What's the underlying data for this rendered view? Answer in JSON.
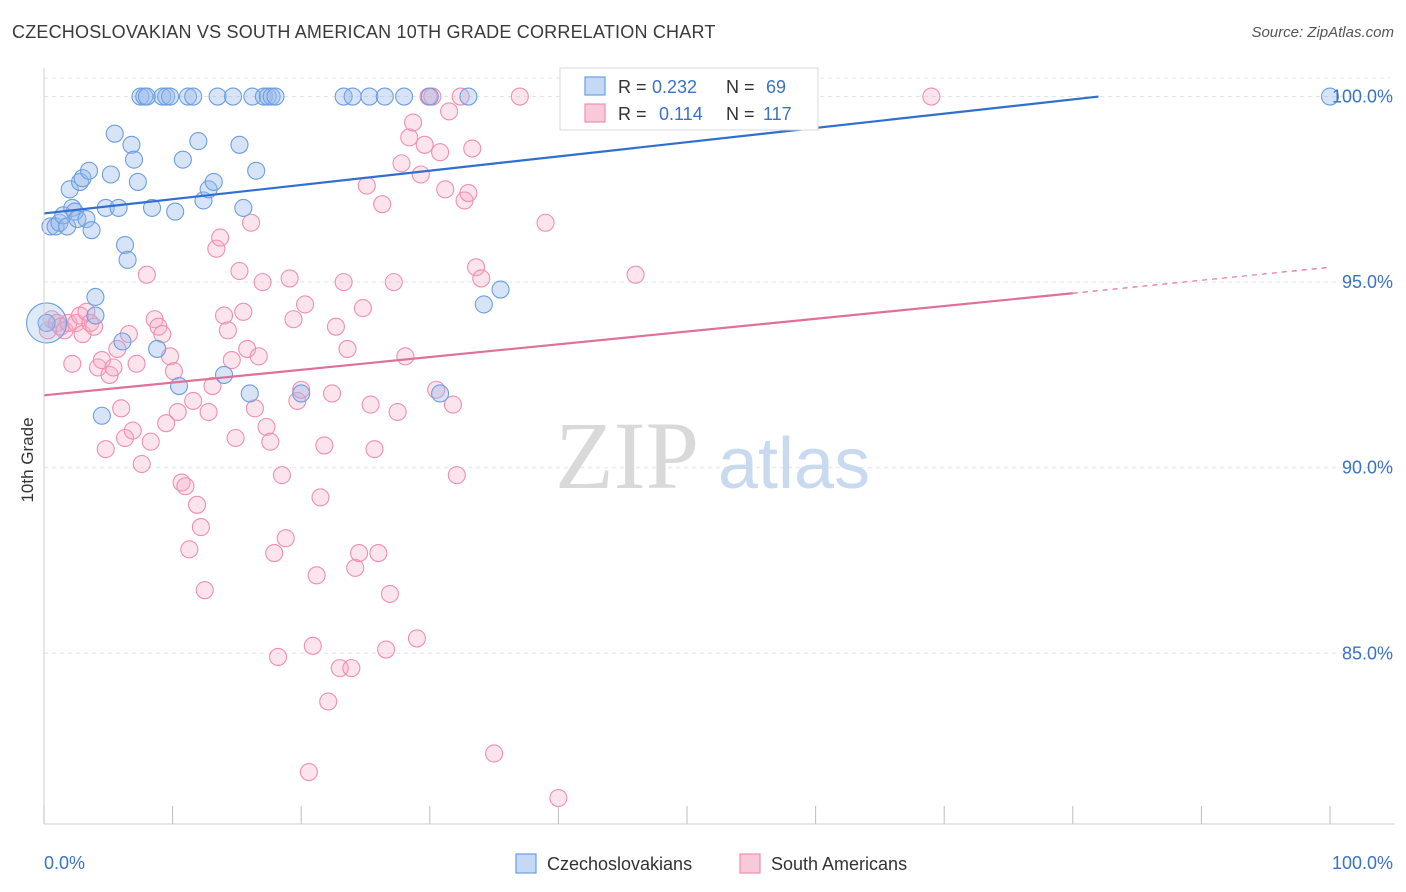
{
  "title": "CZECHOSLOVAKIAN VS SOUTH AMERICAN 10TH GRADE CORRELATION CHART",
  "source": "Source: ZipAtlas.com",
  "watermark": {
    "zip": "ZIP",
    "atlas": "atlas"
  },
  "legend_box": [
    {
      "r_label": "R =",
      "r_value": "0.232",
      "n_label": "N =",
      "n_value": "69"
    },
    {
      "r_label": "R =",
      "r_value": "0.114",
      "n_label": "N =",
      "n_value": "117"
    }
  ],
  "colors": {
    "blue": "#6d9ee0",
    "blue_line": "#2f6fd0",
    "pink": "#ef8fb0",
    "pink_line": "#e0709a",
    "value_text": "#3a72c8"
  },
  "chart_data": {
    "type": "scatter",
    "title": "CZECHOSLOVAKIAN VS SOUTH AMERICAN 10TH GRADE CORRELATION CHART",
    "xlabel": "",
    "ylabel": "10th Grade",
    "xlim": [
      0,
      100
    ],
    "ylim": [
      80.4,
      100.5
    ],
    "x_tick_labels": [
      "0.0%",
      "100.0%"
    ],
    "y_ticks": [
      85,
      90,
      95,
      100
    ],
    "y_tick_labels": [
      "85.0%",
      "90.0%",
      "95.0%",
      "100.0%"
    ],
    "grid": true,
    "legend_position": "bottom-center",
    "series": [
      {
        "name": "Czechoslovakians",
        "color": "#6d9ee0",
        "trend": {
          "x0": 0,
          "y0": 96.85,
          "x1": 82,
          "y1": 100.0
        },
        "points": [
          [
            0.2,
            93.9
          ],
          [
            0.5,
            96.5
          ],
          [
            0.9,
            96.5
          ],
          [
            1.2,
            96.6
          ],
          [
            1.5,
            96.8
          ],
          [
            1.8,
            96.5
          ],
          [
            2.0,
            97.5
          ],
          [
            2.2,
            97.0
          ],
          [
            2.4,
            96.9
          ],
          [
            2.6,
            96.7
          ],
          [
            2.8,
            97.7
          ],
          [
            3.0,
            97.8
          ],
          [
            3.3,
            96.7
          ],
          [
            3.5,
            98.0
          ],
          [
            3.7,
            96.4
          ],
          [
            4.0,
            94.6
          ],
          [
            4.0,
            94.1
          ],
          [
            4.5,
            91.4
          ],
          [
            4.8,
            97.0
          ],
          [
            5.2,
            97.9
          ],
          [
            5.5,
            99.0
          ],
          [
            5.8,
            97.0
          ],
          [
            6.1,
            93.4
          ],
          [
            6.3,
            96.0
          ],
          [
            6.5,
            95.6
          ],
          [
            6.8,
            98.7
          ],
          [
            7.0,
            98.3
          ],
          [
            7.3,
            97.7
          ],
          [
            7.5,
            100.0
          ],
          [
            7.8,
            100.0
          ],
          [
            8.0,
            100.0
          ],
          [
            8.4,
            97.0
          ],
          [
            8.8,
            93.2
          ],
          [
            9.2,
            100.0
          ],
          [
            9.5,
            100.0
          ],
          [
            9.8,
            100.0
          ],
          [
            10.2,
            96.9
          ],
          [
            10.5,
            92.2
          ],
          [
            10.8,
            98.3
          ],
          [
            11.2,
            100.0
          ],
          [
            11.6,
            100.0
          ],
          [
            12.0,
            98.8
          ],
          [
            12.4,
            97.2
          ],
          [
            12.8,
            97.5
          ],
          [
            13.2,
            97.7
          ],
          [
            13.5,
            100.0
          ],
          [
            14.0,
            92.5
          ],
          [
            14.7,
            100.0
          ],
          [
            15.2,
            98.7
          ],
          [
            15.5,
            97.0
          ],
          [
            16.0,
            92.0
          ],
          [
            16.2,
            100.0
          ],
          [
            16.5,
            98.0
          ],
          [
            17.1,
            100.0
          ],
          [
            17.4,
            100.0
          ],
          [
            17.7,
            100.0
          ],
          [
            18.0,
            100.0
          ],
          [
            20.0,
            92.0
          ],
          [
            23.3,
            100.0
          ],
          [
            24.0,
            100.0
          ],
          [
            25.3,
            100.0
          ],
          [
            26.5,
            100.0
          ],
          [
            28.0,
            100.0
          ],
          [
            30.0,
            100.0
          ],
          [
            30.8,
            92.0
          ],
          [
            33.0,
            100.0
          ],
          [
            34.2,
            94.4
          ],
          [
            35.5,
            94.8
          ],
          [
            100.0,
            100.0
          ]
        ]
      },
      {
        "name": "South Americans",
        "color": "#ef8fb0",
        "trend": {
          "x0": 0,
          "y0": 91.95,
          "x1": 80,
          "y1": 94.7
        },
        "trend_dashed": {
          "x0": 80,
          "y0": 94.7,
          "x1": 100,
          "y1": 95.4
        },
        "points": [
          [
            0.3,
            93.7
          ],
          [
            0.6,
            94.0
          ],
          [
            1.0,
            93.9
          ],
          [
            1.3,
            93.8
          ],
          [
            1.6,
            93.7
          ],
          [
            1.9,
            93.9
          ],
          [
            2.2,
            92.8
          ],
          [
            2.5,
            93.9
          ],
          [
            2.8,
            94.1
          ],
          [
            3.0,
            93.6
          ],
          [
            3.3,
            94.2
          ],
          [
            3.6,
            93.9
          ],
          [
            3.9,
            93.8
          ],
          [
            4.2,
            92.7
          ],
          [
            4.5,
            92.9
          ],
          [
            4.8,
            90.5
          ],
          [
            5.1,
            92.5
          ],
          [
            5.4,
            92.7
          ],
          [
            5.7,
            93.2
          ],
          [
            6.0,
            91.6
          ],
          [
            6.3,
            90.8
          ],
          [
            6.6,
            93.6
          ],
          [
            6.9,
            91.0
          ],
          [
            7.2,
            92.8
          ],
          [
            7.6,
            90.1
          ],
          [
            8.0,
            95.2
          ],
          [
            8.3,
            90.7
          ],
          [
            8.6,
            94.0
          ],
          [
            8.9,
            93.8
          ],
          [
            9.2,
            93.6
          ],
          [
            9.5,
            91.2
          ],
          [
            9.8,
            93.0
          ],
          [
            10.1,
            92.6
          ],
          [
            10.4,
            91.5
          ],
          [
            10.7,
            89.6
          ],
          [
            11.0,
            89.5
          ],
          [
            11.3,
            87.8
          ],
          [
            11.6,
            91.8
          ],
          [
            11.9,
            89.0
          ],
          [
            12.2,
            88.4
          ],
          [
            12.5,
            86.7
          ],
          [
            12.8,
            91.5
          ],
          [
            13.1,
            92.2
          ],
          [
            13.4,
            95.9
          ],
          [
            13.7,
            96.2
          ],
          [
            14.0,
            94.1
          ],
          [
            14.3,
            93.7
          ],
          [
            14.6,
            92.9
          ],
          [
            14.9,
            90.8
          ],
          [
            15.2,
            95.3
          ],
          [
            15.5,
            94.2
          ],
          [
            15.8,
            93.2
          ],
          [
            16.1,
            96.6
          ],
          [
            16.4,
            91.6
          ],
          [
            16.7,
            93.0
          ],
          [
            17.0,
            95.0
          ],
          [
            17.3,
            91.1
          ],
          [
            17.6,
            90.7
          ],
          [
            17.9,
            87.7
          ],
          [
            18.2,
            84.9
          ],
          [
            18.5,
            89.8
          ],
          [
            18.8,
            88.1
          ],
          [
            19.1,
            95.1
          ],
          [
            19.4,
            94.0
          ],
          [
            19.7,
            91.8
          ],
          [
            20.0,
            92.1
          ],
          [
            20.3,
            94.4
          ],
          [
            20.6,
            81.8
          ],
          [
            20.9,
            85.2
          ],
          [
            21.2,
            87.1
          ],
          [
            21.5,
            89.2
          ],
          [
            21.8,
            90.6
          ],
          [
            22.1,
            83.7
          ],
          [
            22.4,
            92.0
          ],
          [
            22.7,
            93.8
          ],
          [
            23.0,
            84.6
          ],
          [
            23.3,
            95.0
          ],
          [
            23.6,
            93.2
          ],
          [
            23.9,
            84.6
          ],
          [
            24.2,
            87.3
          ],
          [
            24.5,
            87.7
          ],
          [
            24.8,
            94.3
          ],
          [
            25.1,
            97.6
          ],
          [
            25.4,
            91.7
          ],
          [
            25.7,
            90.5
          ],
          [
            26.0,
            87.7
          ],
          [
            26.3,
            97.1
          ],
          [
            26.6,
            85.1
          ],
          [
            26.9,
            86.6
          ],
          [
            27.2,
            95.0
          ],
          [
            27.5,
            91.5
          ],
          [
            27.8,
            98.2
          ],
          [
            28.1,
            93.0
          ],
          [
            28.4,
            98.9
          ],
          [
            28.7,
            99.3
          ],
          [
            29.0,
            85.4
          ],
          [
            29.3,
            97.9
          ],
          [
            29.6,
            98.7
          ],
          [
            29.9,
            100.0
          ],
          [
            30.2,
            100.0
          ],
          [
            30.5,
            92.1
          ],
          [
            30.8,
            98.5
          ],
          [
            31.2,
            97.5
          ],
          [
            31.5,
            99.6
          ],
          [
            31.8,
            91.7
          ],
          [
            32.1,
            89.8
          ],
          [
            32.4,
            100.0
          ],
          [
            32.7,
            97.2
          ],
          [
            33.0,
            97.4
          ],
          [
            33.3,
            98.6
          ],
          [
            33.6,
            95.4
          ],
          [
            34.0,
            95.1
          ],
          [
            35.0,
            82.3
          ],
          [
            37.0,
            100.0
          ],
          [
            39.0,
            96.6
          ],
          [
            40.0,
            81.1
          ],
          [
            46.0,
            95.2
          ],
          [
            69.0,
            100.0
          ]
        ]
      }
    ]
  }
}
